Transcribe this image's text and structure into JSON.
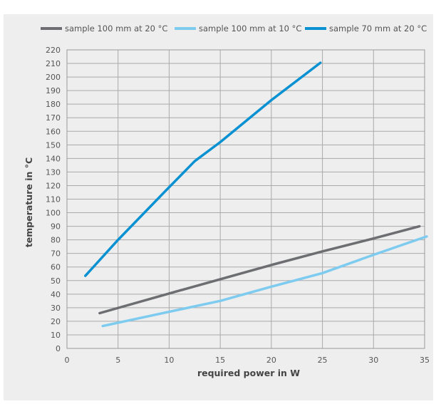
{
  "chart_data": {
    "type": "line",
    "xlabel": "required power in W",
    "ylabel": "temperature in °C",
    "xlim": [
      0,
      35
    ],
    "ylim": [
      0,
      220
    ],
    "xticks": [
      0,
      5,
      10,
      15,
      20,
      25,
      30,
      35
    ],
    "yticks": [
      0,
      10,
      20,
      30,
      40,
      50,
      60,
      70,
      80,
      90,
      100,
      110,
      120,
      130,
      140,
      150,
      160,
      170,
      180,
      190,
      200,
      210,
      220
    ],
    "grid": true,
    "legend_position": "top",
    "series": [
      {
        "name": "sample 100 mm at 20 °C",
        "color": "#6d6e71",
        "x": [
          3.2,
          10,
          15,
          20,
          25,
          30,
          34.5
        ],
        "y": [
          26,
          40.5,
          51,
          61.5,
          71.5,
          81,
          90
        ]
      },
      {
        "name": "sample 100 mm at 10 °C",
        "color": "#7ecbf0",
        "x": [
          3.5,
          10,
          15,
          20,
          25,
          30,
          35.2
        ],
        "y": [
          16.5,
          27,
          35,
          45.5,
          55.5,
          69,
          82.5
        ]
      },
      {
        "name": "sample 70 mm at 20 °C",
        "color": "#0a91d2",
        "x": [
          1.8,
          5,
          9.5,
          12.5,
          15,
          20,
          24.8
        ],
        "y": [
          53.5,
          80,
          115,
          138,
          152,
          183,
          210.5
        ]
      }
    ]
  }
}
